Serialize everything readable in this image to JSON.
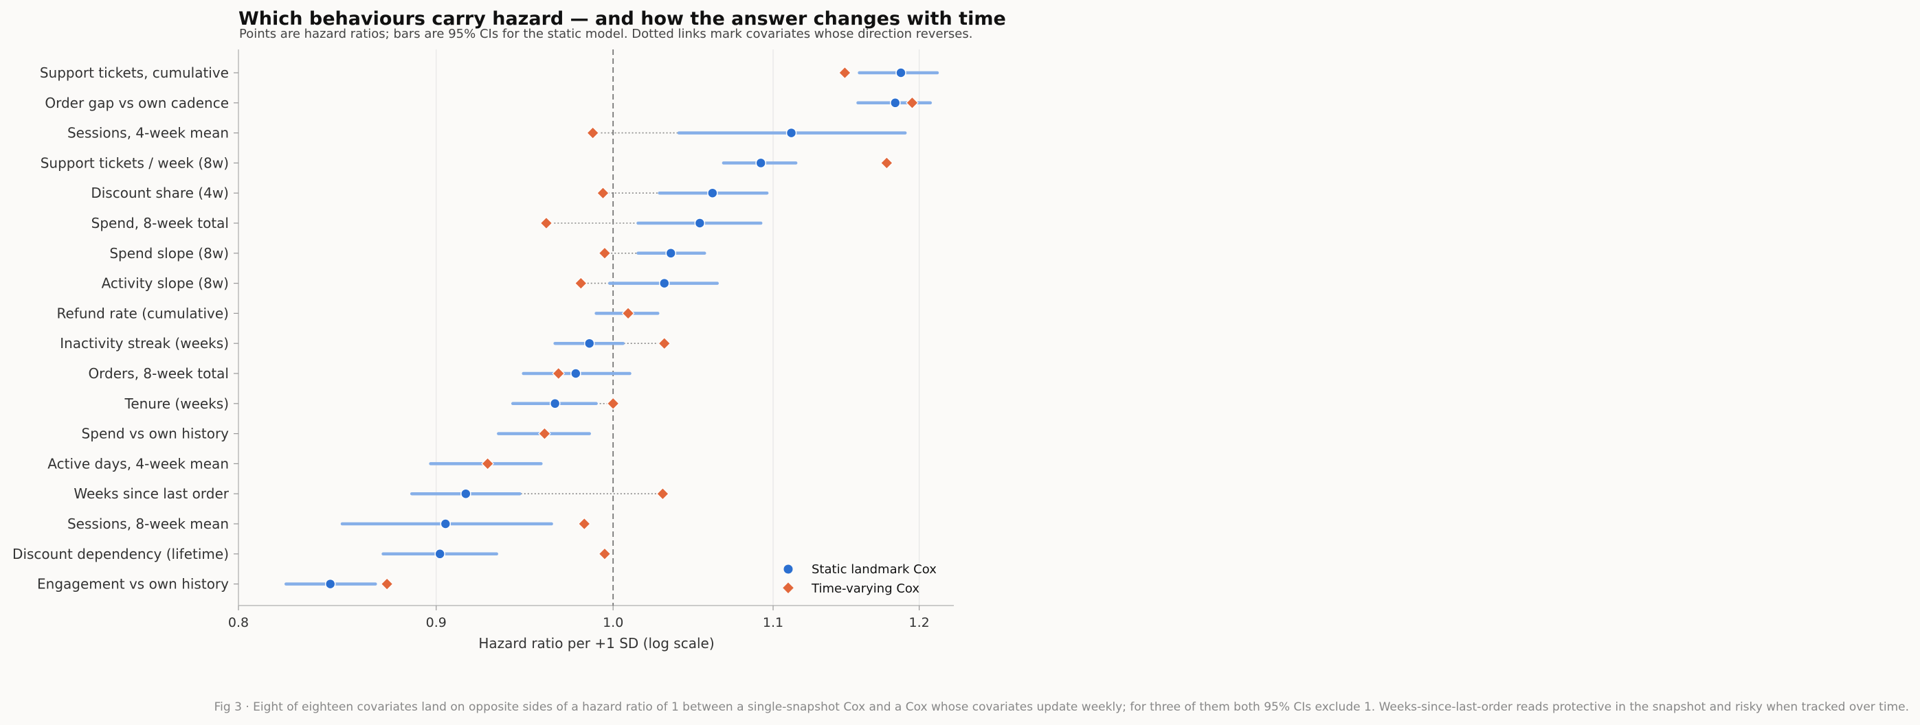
{
  "chart_data": {
    "type": "scatter",
    "title": "Which behaviours carry hazard — and how the answer changes with time",
    "subtitle": "Points are hazard ratios; bars are 95% CIs for the static model. Dotted links mark covariates whose direction reverses.",
    "xlabel": "Hazard ratio per +1 SD  (log scale)",
    "xscale": "log",
    "xlim": [
      0.8,
      1.225
    ],
    "xticks": [
      0.8,
      0.9,
      1.0,
      1.1,
      1.2
    ],
    "xtick_labels": [
      "0.8",
      "0.9",
      "1.0",
      "1.1",
      "1.2"
    ],
    "reference_line": 1.0,
    "grid": "vertical",
    "legend_position": "bottom-right",
    "colors": {
      "static": "#2b6fd0",
      "static_ci": "#86afe8",
      "tv": "#e2673a",
      "ref": "#777777",
      "link": "#888888"
    },
    "series": [
      {
        "name": "Static landmark Cox",
        "marker": "circle"
      },
      {
        "name": "Time-varying Cox",
        "marker": "diamond"
      }
    ],
    "covariates": [
      {
        "label": "Support tickets, cumulative",
        "static": 1.187,
        "ci": [
          1.158,
          1.213
        ],
        "tv": 1.148,
        "reverses": false
      },
      {
        "label": "Order gap vs own cadence",
        "static": 1.183,
        "ci": [
          1.157,
          1.208
        ],
        "tv": 1.195,
        "reverses": false
      },
      {
        "label": "Sessions, 4-week mean",
        "static": 1.112,
        "ci": [
          1.04,
          1.19
        ],
        "tv": 0.988,
        "reverses": true
      },
      {
        "label": "Support tickets / week (8w)",
        "static": 1.092,
        "ci": [
          1.068,
          1.115
        ],
        "tv": 1.177,
        "reverses": false
      },
      {
        "label": "Discount share (4w)",
        "static": 1.061,
        "ci": [
          1.028,
          1.096
        ],
        "tv": 0.994,
        "reverses": true
      },
      {
        "label": "Spend, 8-week total",
        "static": 1.053,
        "ci": [
          1.015,
          1.092
        ],
        "tv": 0.961,
        "reverses": true
      },
      {
        "label": "Spend slope (8w)",
        "static": 1.035,
        "ci": [
          1.015,
          1.056
        ],
        "tv": 0.995,
        "reverses": true
      },
      {
        "label": "Activity slope (8w)",
        "static": 1.031,
        "ci": [
          0.998,
          1.064
        ],
        "tv": 0.981,
        "reverses": true
      },
      {
        "label": "Refund rate (cumulative)",
        "static": null,
        "ci": [
          0.99,
          1.027
        ],
        "tv": 1.009,
        "reverses": false
      },
      {
        "label": "Inactivity streak (weeks)",
        "static": 0.986,
        "ci": [
          0.966,
          1.006
        ],
        "tv": 1.031,
        "reverses": true
      },
      {
        "label": "Orders, 8-week total",
        "static": 0.978,
        "ci": [
          0.948,
          1.01
        ],
        "tv": 0.968,
        "reverses": false
      },
      {
        "label": "Tenure (weeks)",
        "static": 0.966,
        "ci": [
          0.942,
          0.99
        ],
        "tv": 1.0,
        "reverses": true
      },
      {
        "label": "Spend vs own history",
        "static": null,
        "ci": [
          0.934,
          0.986
        ],
        "tv": 0.96,
        "reverses": false
      },
      {
        "label": "Active days, 4-week mean",
        "static": null,
        "ci": [
          0.897,
          0.958
        ],
        "tv": 0.928,
        "reverses": false
      },
      {
        "label": "Weeks since last order",
        "static": 0.916,
        "ci": [
          0.887,
          0.946
        ],
        "tv": 1.03,
        "reverses": true
      },
      {
        "label": "Sessions, 8-week mean",
        "static": 0.905,
        "ci": [
          0.851,
          0.964
        ],
        "tv": 0.983,
        "reverses": false
      },
      {
        "label": "Discount dependency (lifetime)",
        "static": 0.902,
        "ci": [
          0.872,
          0.933
        ],
        "tv": 0.995,
        "reverses": false
      },
      {
        "label": "Engagement vs own history",
        "static": 0.845,
        "ci": [
          0.823,
          0.868
        ],
        "tv": 0.874,
        "reverses": false
      }
    ]
  },
  "caption": "Fig 3 · Eight of eighteen covariates land on opposite sides of a hazard ratio of 1 between a single-snapshot Cox and a Cox whose covariates update weekly; for three of them both 95% CIs exclude 1. Weeks-since-last-order reads protective in the snapshot and risky when tracked over time."
}
